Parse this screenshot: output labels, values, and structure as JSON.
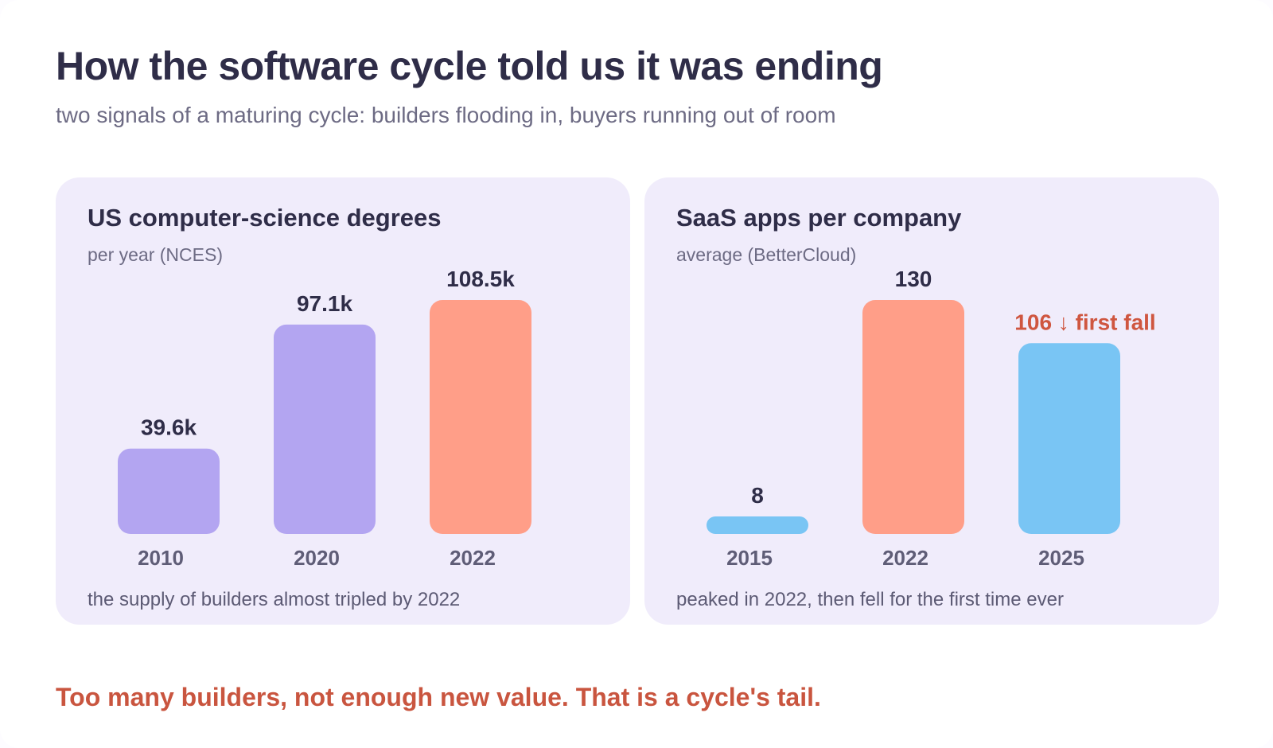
{
  "title": "How the software cycle told us it was ending",
  "subtitle": "two signals of a maturing cycle: builders flooding in, buyers running out of room",
  "footer": "Too many builders, not enough new value. That is a cycle's tail.",
  "colors": {
    "panel_bg": "#f0ecfb",
    "purple": "#b3a5f1",
    "salmon": "#ff9e88",
    "blue": "#79c5f4",
    "callout": "#cf5640"
  },
  "chart_data": [
    {
      "type": "bar",
      "title": "US computer-science degrees",
      "subtitle": "per year (NCES)",
      "note": "the supply of builders almost tripled by 2022",
      "categories": [
        "2010",
        "2020",
        "2022"
      ],
      "values": [
        39600,
        97100,
        108500
      ],
      "value_labels": [
        "39.6k",
        "97.1k",
        "108.5k"
      ],
      "bar_colors": [
        "#b3a5f1",
        "#b3a5f1",
        "#ff9e88"
      ],
      "ylim": [
        0,
        108500
      ]
    },
    {
      "type": "bar",
      "title": "SaaS apps per company",
      "subtitle": "average (BetterCloud)",
      "note": "peaked in 2022, then fell for the first time ever",
      "categories": [
        "2015",
        "2022",
        "2025"
      ],
      "values": [
        8,
        130,
        106
      ],
      "value_labels": [
        "8",
        "130",
        "106 ↓ first fall"
      ],
      "highlight_label_index": 2,
      "bar_colors": [
        "#79c5f4",
        "#ff9e88",
        "#79c5f4"
      ],
      "ylim": [
        0,
        130
      ]
    }
  ]
}
